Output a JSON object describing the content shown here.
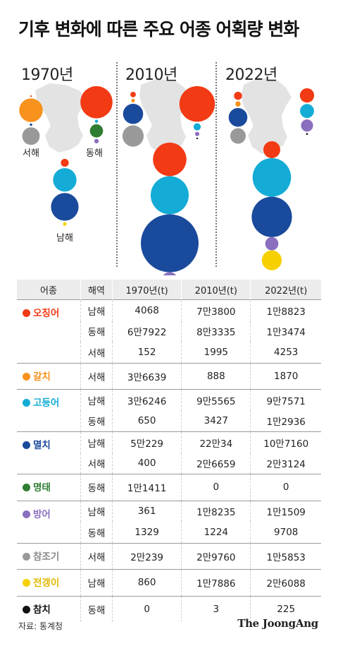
{
  "title": "기후 변화에 따른 주요 어종 어획량 변화",
  "map": {
    "years": [
      "1970년",
      "2010년",
      "2022년"
    ],
    "sea_labels": {
      "west": "서해",
      "east": "동해",
      "south": "남해"
    }
  },
  "table": {
    "headers": [
      "어종",
      "해역",
      "1970년(t)",
      "2010년(t)",
      "2022년(t)"
    ]
  },
  "chart_data": {
    "type": "table",
    "unit": "t",
    "species": [
      {
        "name": "오징어",
        "color": "#f23a14",
        "rows": [
          {
            "sea": "남해",
            "v1970": "4068",
            "v2010": "7만3800",
            "v2022": "1만8823"
          },
          {
            "sea": "동해",
            "v1970": "6만7922",
            "v2010": "8만3335",
            "v2022": "1만3474"
          },
          {
            "sea": "서해",
            "v1970": "152",
            "v2010": "1995",
            "v2022": "4253"
          }
        ]
      },
      {
        "name": "갈치",
        "color": "#f7921e",
        "rows": [
          {
            "sea": "서해",
            "v1970": "3만6639",
            "v2010": "888",
            "v2022": "1870"
          }
        ]
      },
      {
        "name": "고등어",
        "color": "#14acd6",
        "rows": [
          {
            "sea": "남해",
            "v1970": "3만6246",
            "v2010": "9만5565",
            "v2022": "9만7571"
          },
          {
            "sea": "동해",
            "v1970": "650",
            "v2010": "3427",
            "v2022": "1만2936"
          }
        ]
      },
      {
        "name": "멸치",
        "color": "#1a4a9c",
        "rows": [
          {
            "sea": "남해",
            "v1970": "5만229",
            "v2010": "22만34",
            "v2022": "10만7160"
          },
          {
            "sea": "서해",
            "v1970": "400",
            "v2010": "2만6659",
            "v2022": "2만3124"
          }
        ]
      },
      {
        "name": "명태",
        "color": "#2f7d32",
        "rows": [
          {
            "sea": "동해",
            "v1970": "1만1411",
            "v2010": "0",
            "v2022": "0"
          }
        ]
      },
      {
        "name": "방어",
        "color": "#8a6fbe",
        "rows": [
          {
            "sea": "남해",
            "v1970": "361",
            "v2010": "1만8235",
            "v2022": "1만1509"
          },
          {
            "sea": "동해",
            "v1970": "1329",
            "v2010": "1224",
            "v2022": "9708"
          }
        ]
      },
      {
        "name": "참조기",
        "color": "#999999",
        "rows": [
          {
            "sea": "서해",
            "v1970": "2만239",
            "v2010": "2만9760",
            "v2022": "1만5853"
          }
        ]
      },
      {
        "name": "전갱이",
        "color": "#f6d000",
        "rows": [
          {
            "sea": "남해",
            "v1970": "860",
            "v2010": "1만7886",
            "v2022": "2만6088"
          }
        ]
      },
      {
        "name": "참치",
        "color": "#111111",
        "rows": [
          {
            "sea": "동해",
            "v1970": "0",
            "v2010": "3",
            "v2022": "225"
          }
        ]
      }
    ]
  },
  "source": "자료: 통계청",
  "brand": "The JoongAng"
}
